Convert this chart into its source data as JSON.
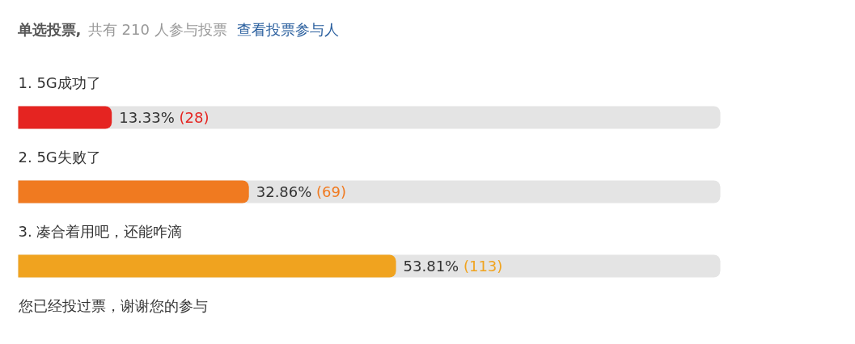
{
  "chart_data": {
    "type": "bar",
    "orientation": "horizontal",
    "title": "单选投票,",
    "subtitle": "共有 210 人参与投票",
    "categories": [
      "1. 5G成功了",
      "2. 5G失败了",
      "3. 凑合着用吧，还能咋滴"
    ],
    "values": [
      13.33,
      32.86,
      53.81
    ],
    "colors": [
      "#e52421",
      "#f07a20",
      "#f0a31f"
    ],
    "tick_labels": false,
    "value_labels": [
      "13.33% (28)",
      "32.86% (69)",
      "53.81% (113)"
    ],
    "annotations": [
      "查看投票参与人",
      "您已经投过票，谢谢您的参与"
    ]
  }
}
